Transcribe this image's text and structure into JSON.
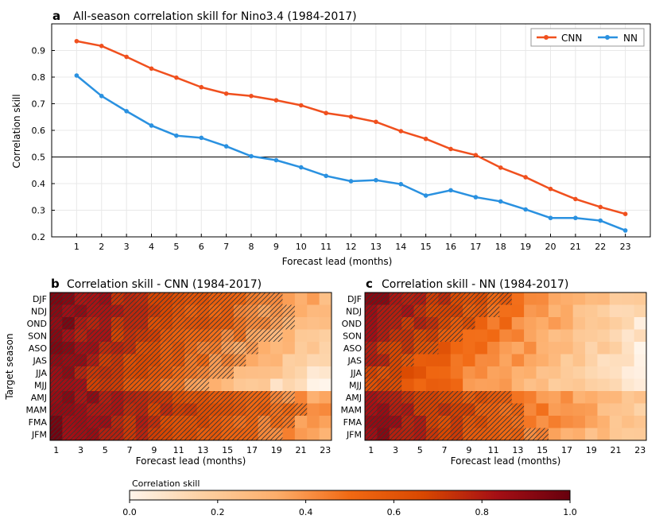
{
  "chart_data": [
    {
      "type": "line",
      "panel_letter": "a",
      "title": "All-season correlation skill for Nino3.4 (1984-2017)",
      "xlabel": "Forecast lead (months)",
      "ylabel": "Correlation skill",
      "x": [
        1,
        2,
        3,
        4,
        5,
        6,
        7,
        8,
        9,
        10,
        11,
        12,
        13,
        14,
        15,
        16,
        17,
        18,
        19,
        20,
        21,
        22,
        23
      ],
      "xlim": [
        0,
        24
      ],
      "ylim": [
        0.2,
        1.0
      ],
      "yticks": [
        0.2,
        0.3,
        0.4,
        0.5,
        0.6,
        0.7,
        0.8,
        0.9
      ],
      "reference_line": 0.5,
      "legend": "top-right",
      "grid": true,
      "series": [
        {
          "name": "CNN",
          "color": "#f0501e",
          "values": [
            0.935,
            0.917,
            0.876,
            0.832,
            0.798,
            0.762,
            0.738,
            0.729,
            0.713,
            0.694,
            0.665,
            0.651,
            0.632,
            0.597,
            0.568,
            0.53,
            0.507,
            0.46,
            0.424,
            0.38,
            0.342,
            0.312,
            0.286
          ]
        },
        {
          "name": "NN",
          "color": "#2a91e0",
          "values": [
            0.806,
            0.729,
            0.672,
            0.618,
            0.58,
            0.572,
            0.54,
            0.503,
            0.488,
            0.461,
            0.429,
            0.409,
            0.413,
            0.398,
            0.355,
            0.375,
            0.349,
            0.333,
            0.303,
            0.271,
            0.271,
            0.261,
            0.224
          ]
        }
      ]
    },
    {
      "type": "heatmap",
      "panel_letter": "b",
      "title": "Correlation skill - CNN (1984-2017)",
      "xlabel": "Forecast lead (months)",
      "ylabel": "Target season",
      "x_ticks": [
        1,
        3,
        5,
        7,
        9,
        11,
        13,
        15,
        17,
        19,
        21,
        23
      ],
      "y_categories": [
        "DJF",
        "NDJ",
        "OND",
        "SON",
        "ASO",
        "JAS",
        "JJA",
        "MJJ",
        "AMJ",
        "MAM",
        "FMA",
        "JFM"
      ],
      "colorbar_range": [
        0,
        1
      ],
      "hatch_threshold_lead": [
        19,
        20,
        20,
        19,
        17,
        16,
        15,
        13,
        20,
        21,
        20,
        19
      ]
    },
    {
      "type": "heatmap",
      "panel_letter": "c",
      "title": "Correlation skill - NN (1984-2017)",
      "xlabel": "Forecast lead (months)",
      "ylabel": "",
      "x_ticks": [
        1,
        3,
        5,
        7,
        9,
        11,
        13,
        15,
        17,
        19,
        21,
        23
      ],
      "y_categories": [
        "DJF",
        "NDJ",
        "OND",
        "SON",
        "ASO",
        "JAS",
        "JJA",
        "MJJ",
        "AMJ",
        "MAM",
        "FMA",
        "JFM"
      ],
      "colorbar_range": [
        0,
        1
      ],
      "hatch_threshold_lead": [
        12,
        11,
        9,
        8,
        6,
        4,
        3,
        3,
        12,
        13,
        13,
        15
      ]
    }
  ],
  "colorbar": {
    "label": "Correlation skill",
    "ticks": [
      "0.0",
      "0.2",
      "0.4",
      "0.6",
      "0.8",
      "1.0"
    ],
    "colors": [
      "#fff5eb",
      "#fdd0a2",
      "#fdae6b",
      "#f16913",
      "#d94801",
      "#a50f15",
      "#67000d"
    ]
  }
}
